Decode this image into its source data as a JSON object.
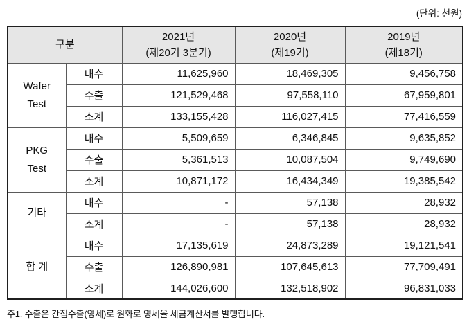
{
  "unit_label": "(단위: 천원)",
  "note": "주1. 수출은 간접수출(영세)로 원화로 영세율 세금계산서를 발행합니다.",
  "colors": {
    "header_bg": "#e6e6e6",
    "outer_border": "#1f1f1f",
    "inner_border": "#5a5a5a",
    "text": "#111111"
  },
  "table": {
    "header": {
      "category": "구분",
      "columns": [
        {
          "year": "2021년",
          "period": "(제20기 3분기)"
        },
        {
          "year": "2020년",
          "period": "(제19기)"
        },
        {
          "year": "2019년",
          "period": "(제18기)"
        }
      ]
    },
    "groups": [
      {
        "name": "Wafer Test",
        "rows": [
          {
            "label": "내수",
            "values": [
              "11,625,960",
              "18,469,305",
              "9,456,758"
            ]
          },
          {
            "label": "수출",
            "values": [
              "121,529,468",
              "97,558,110",
              "67,959,801"
            ]
          },
          {
            "label": "소계",
            "values": [
              "133,155,428",
              "116,027,415",
              "77,416,559"
            ]
          }
        ]
      },
      {
        "name": "PKG Test",
        "rows": [
          {
            "label": "내수",
            "values": [
              "5,509,659",
              "6,346,845",
              "9,635,852"
            ]
          },
          {
            "label": "수출",
            "values": [
              "5,361,513",
              "10,087,504",
              "9,749,690"
            ]
          },
          {
            "label": "소계",
            "values": [
              "10,871,172",
              "16,434,349",
              "19,385,542"
            ]
          }
        ]
      },
      {
        "name": "기타",
        "rows": [
          {
            "label": "내수",
            "values": [
              "-",
              "57,138",
              "28,932"
            ]
          },
          {
            "label": "소계",
            "values": [
              "-",
              "57,138",
              "28,932"
            ]
          }
        ]
      },
      {
        "name": "합 계",
        "rows": [
          {
            "label": "내수",
            "values": [
              "17,135,619",
              "24,873,289",
              "19,121,541"
            ]
          },
          {
            "label": "수출",
            "values": [
              "126,890,981",
              "107,645,613",
              "77,709,491"
            ]
          },
          {
            "label": "소계",
            "values": [
              "144,026,600",
              "132,518,902",
              "96,831,033"
            ]
          }
        ]
      }
    ]
  }
}
